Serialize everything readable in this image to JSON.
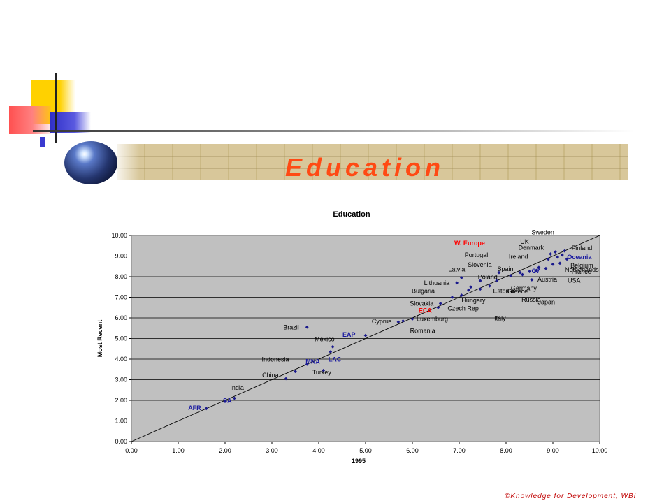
{
  "slide": {
    "title": "Education",
    "footer": "©Knowledge for Development, WBI"
  },
  "colors": {
    "title": "#ff4a14",
    "plot_bg": "#c0c0c0",
    "point": "#1a1a8c",
    "region_label": "#1a1aa0",
    "highlight_label": "#ff0000"
  },
  "chart_data": {
    "type": "scatter",
    "title": "Education",
    "xlabel": "1995",
    "ylabel": "Most Recent",
    "xlim": [
      0,
      10
    ],
    "ylim": [
      0,
      10
    ],
    "x_ticks": [
      "0.00",
      "1.00",
      "2.00",
      "3.00",
      "4.00",
      "5.00",
      "6.00",
      "7.00",
      "8.00",
      "9.00",
      "10.00"
    ],
    "y_ticks": [
      "0.00",
      "1.00",
      "2.00",
      "3.00",
      "4.00",
      "5.00",
      "6.00",
      "7.00",
      "8.00",
      "9.00",
      "10.00"
    ],
    "grid": "horizontal",
    "reference_line": [
      [
        0,
        0
      ],
      [
        10,
        10
      ]
    ],
    "points": [
      {
        "name": "AFR",
        "x": 1.6,
        "y": 1.6,
        "type": "region"
      },
      {
        "name": "SA",
        "x": 2.0,
        "y": 1.95,
        "type": "region"
      },
      {
        "name": "India",
        "x": 2.2,
        "y": 2.1,
        "type": "country"
      },
      {
        "name": "China",
        "x": 3.3,
        "y": 3.05,
        "type": "country"
      },
      {
        "name": "Indonesia",
        "x": 3.5,
        "y": 3.4,
        "type": "country"
      },
      {
        "name": "MNA",
        "x": 3.75,
        "y": 3.75,
        "type": "region"
      },
      {
        "name": "Turkey",
        "x": 4.1,
        "y": 3.45,
        "type": "country"
      },
      {
        "name": "LAC",
        "x": 4.25,
        "y": 4.35,
        "type": "region"
      },
      {
        "name": "Mexico",
        "x": 4.3,
        "y": 4.6,
        "type": "country"
      },
      {
        "name": "Brazil",
        "x": 3.75,
        "y": 5.55,
        "type": "country"
      },
      {
        "name": "EAP",
        "x": 5.0,
        "y": 5.15,
        "type": "region"
      },
      {
        "name": "Cyprus",
        "x": 5.7,
        "y": 5.8,
        "type": "country"
      },
      {
        "name": "Romania",
        "x": 5.8,
        "y": 5.85,
        "type": "country"
      },
      {
        "name": "Luxemburg",
        "x": 6.0,
        "y": 5.95,
        "type": "country"
      },
      {
        "name": "ECA",
        "x": 6.55,
        "y": 6.5,
        "type": "highlight"
      },
      {
        "name": "Slovakia",
        "x": 6.6,
        "y": 6.7,
        "type": "country"
      },
      {
        "name": "Bulgaria",
        "x": 6.85,
        "y": 7.0,
        "type": "country"
      },
      {
        "name": "Lithuania",
        "x": 6.95,
        "y": 7.7,
        "type": "country"
      },
      {
        "name": "Latvia",
        "x": 7.05,
        "y": 7.95,
        "type": "country"
      },
      {
        "name": "Czech Rep",
        "x": 7.05,
        "y": 7.1,
        "type": "country"
      },
      {
        "name": "Hungary",
        "x": 7.2,
        "y": 7.35,
        "type": "country"
      },
      {
        "name": "Portugal",
        "x": 7.25,
        "y": 7.5,
        "type": "country"
      },
      {
        "name": "Slovenia",
        "x": 7.45,
        "y": 7.8,
        "type": "country"
      },
      {
        "name": "Italy",
        "x": 7.45,
        "y": 7.4,
        "type": "country"
      },
      {
        "name": "Estonia",
        "x": 7.65,
        "y": 7.55,
        "type": "country"
      },
      {
        "name": "Greece",
        "x": 7.8,
        "y": 7.8,
        "type": "country"
      },
      {
        "name": "W. Europe",
        "x": 7.85,
        "y": 8.2,
        "type": "highlight"
      },
      {
        "name": "Poland",
        "x": 8.1,
        "y": 8.05,
        "type": "country"
      },
      {
        "name": "Russia",
        "x": 8.3,
        "y": 8.2,
        "type": "country"
      },
      {
        "name": "Spain",
        "x": 8.35,
        "y": 8.1,
        "type": "country"
      },
      {
        "name": "Japan",
        "x": 8.5,
        "y": 8.25,
        "type": "country"
      },
      {
        "name": "Germany",
        "x": 8.55,
        "y": 7.85,
        "type": "country"
      },
      {
        "name": "G7",
        "x": 8.65,
        "y": 8.3,
        "type": "region"
      },
      {
        "name": "Ireland",
        "x": 8.7,
        "y": 8.45,
        "type": "country"
      },
      {
        "name": "Austria",
        "x": 8.85,
        "y": 8.4,
        "type": "country"
      },
      {
        "name": "UK",
        "x": 8.9,
        "y": 8.85,
        "type": "country"
      },
      {
        "name": "Denmark",
        "x": 8.95,
        "y": 9.1,
        "type": "country"
      },
      {
        "name": "USA",
        "x": 9.0,
        "y": 8.6,
        "type": "country"
      },
      {
        "name": "Sweden",
        "x": 9.05,
        "y": 9.2,
        "type": "country"
      },
      {
        "name": "France",
        "x": 9.1,
        "y": 8.95,
        "type": "country"
      },
      {
        "name": "Netherlands",
        "x": 9.15,
        "y": 8.65,
        "type": "country"
      },
      {
        "name": "Oceania",
        "x": 9.2,
        "y": 9.05,
        "type": "region"
      },
      {
        "name": "Finland",
        "x": 9.25,
        "y": 9.25,
        "type": "country"
      },
      {
        "name": "Belgium",
        "x": 9.3,
        "y": 8.85,
        "type": "country"
      }
    ]
  }
}
